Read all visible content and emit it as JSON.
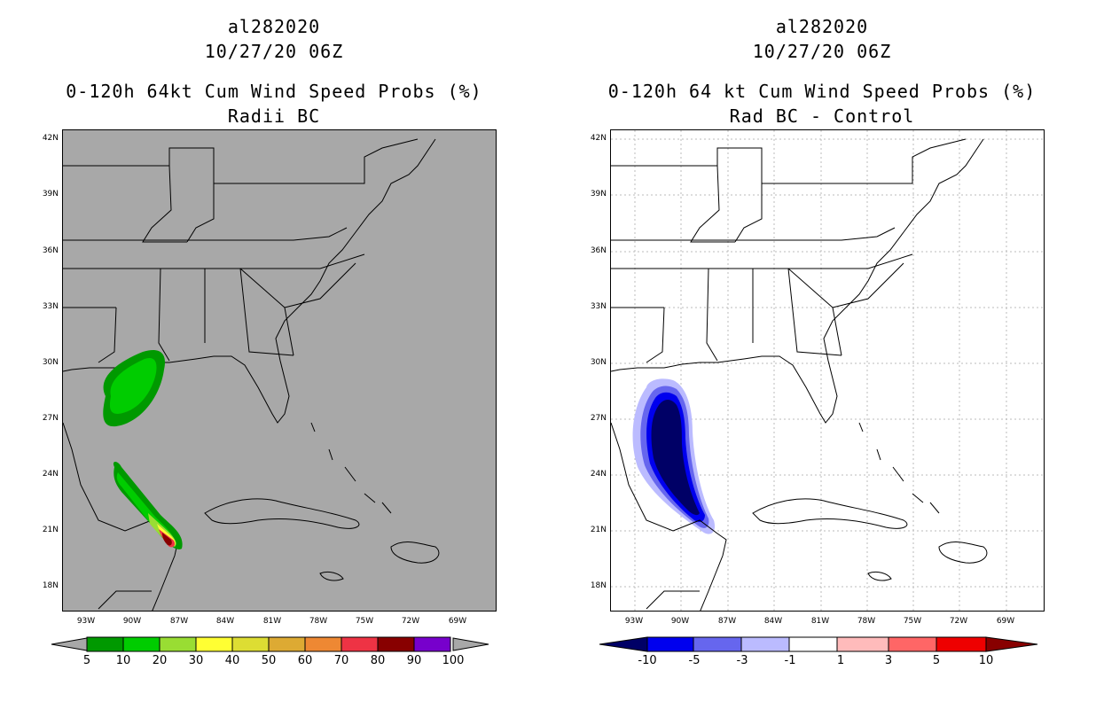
{
  "left_panel": {
    "storm_id": "al282020",
    "datetime": "10/27/20 06Z",
    "title": "0-120h 64kt Cum Wind Speed Probs (%)",
    "subtitle": "Radii BC",
    "background_color": "#a8a8a8",
    "colorbar_labels": [
      "5",
      "10",
      "20",
      "30",
      "40",
      "50",
      "60",
      "70",
      "80",
      "90",
      "100"
    ],
    "colorbar_colors": [
      "#009900",
      "#00cc00",
      "#99dd33",
      "#ffff33",
      "#dddd33",
      "#ddaa33",
      "#ee8833",
      "#ee3344",
      "#880000",
      "#7700cc"
    ]
  },
  "right_panel": {
    "storm_id": "al282020",
    "datetime": "10/27/20 06Z",
    "title": "0-120h 64 kt Cum Wind Speed Probs (%)",
    "subtitle": "Rad BC - Control",
    "background_color": "#ffffff",
    "colorbar_labels": [
      "-10",
      "-5",
      "-3",
      "-1",
      "1",
      "3",
      "5",
      "10"
    ],
    "colorbar_colors": [
      "#000066",
      "#0000ee",
      "#6666ee",
      "#bbbbff",
      "#ffffff",
      "#ffbbbb",
      "#ff6666",
      "#ee0000",
      "#880000"
    ]
  },
  "lat_labels": [
    "42N",
    "39N",
    "36N",
    "33N",
    "30N",
    "27N",
    "24N",
    "21N",
    "18N"
  ],
  "lon_labels": [
    "93W",
    "90W",
    "87W",
    "84W",
    "81W",
    "78W",
    "75W",
    "72W",
    "69W"
  ]
}
